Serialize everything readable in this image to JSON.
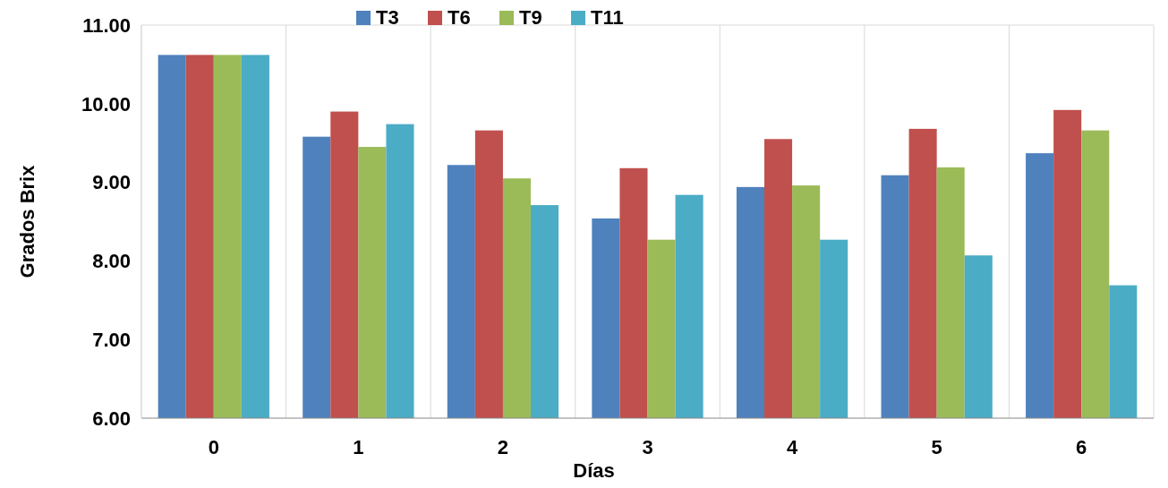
{
  "chart_data": {
    "type": "bar",
    "xlabel": "Días",
    "ylabel": "Grados Brix",
    "categories": [
      "0",
      "1",
      "2",
      "3",
      "4",
      "5",
      "6"
    ],
    "series": [
      {
        "name": "T3",
        "color": "#4f81bd",
        "values": [
          10.62,
          9.58,
          9.22,
          8.54,
          8.94,
          9.09,
          9.37
        ]
      },
      {
        "name": "T6",
        "color": "#c0504d",
        "values": [
          10.62,
          9.9,
          9.66,
          9.18,
          9.55,
          9.68,
          9.92
        ]
      },
      {
        "name": "T9",
        "color": "#9bbb59",
        "values": [
          10.62,
          9.45,
          9.05,
          8.27,
          8.96,
          9.19,
          9.66
        ]
      },
      {
        "name": "T11",
        "color": "#4bacc6",
        "values": [
          10.62,
          9.74,
          8.71,
          8.84,
          8.27,
          8.07,
          7.69
        ]
      }
    ],
    "ylim": [
      6,
      11
    ],
    "yticks": [
      {
        "value": 6,
        "label": "6.00"
      },
      {
        "value": 7,
        "label": "7.00"
      },
      {
        "value": 8,
        "label": "8.00"
      },
      {
        "value": 9,
        "label": "9.00"
      },
      {
        "value": 10,
        "label": "10.00"
      },
      {
        "value": 11,
        "label": "11.00"
      }
    ],
    "grid": "x",
    "legend": "top"
  }
}
